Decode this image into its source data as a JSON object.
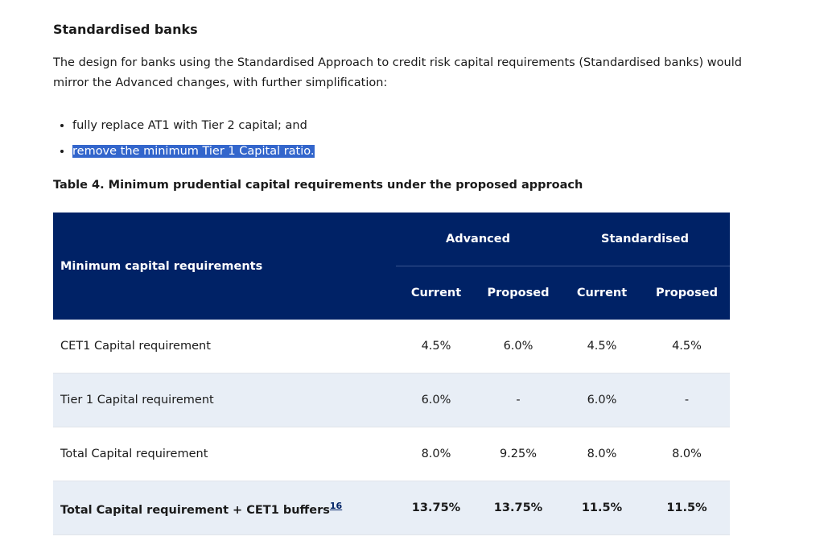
{
  "heading": "Standardised banks",
  "intro": "The design for banks using the Standardised Approach to credit risk capital requirements (Standardised banks) would mirror the Advanced changes, with further simplification:",
  "bullets": [
    "fully replace AT1 with Tier 2 capital; and",
    "remove the minimum Tier 1 Capital ratio."
  ],
  "table": {
    "caption": "Table 4. Minimum prudential capital requirements under the proposed approach",
    "row_header": "Minimum capital requirements",
    "groups": [
      "Advanced",
      "Standardised"
    ],
    "subcols": [
      "Current",
      "Proposed",
      "Current",
      "Proposed"
    ],
    "rows": [
      {
        "label": "CET1 Capital requirement",
        "values": [
          "4.5%",
          "6.0%",
          "4.5%",
          "4.5%"
        ]
      },
      {
        "label": "Tier 1 Capital requirement",
        "values": [
          "6.0%",
          "-",
          "6.0%",
          "-"
        ]
      },
      {
        "label": "Total Capital requirement",
        "values": [
          "8.0%",
          "9.25%",
          "8.0%",
          "8.0%"
        ]
      },
      {
        "label": "Total Capital requirement + CET1 buffers",
        "footnote": "16",
        "values": [
          "13.75%",
          "13.75%",
          "11.5%",
          "11.5%"
        ]
      }
    ]
  }
}
